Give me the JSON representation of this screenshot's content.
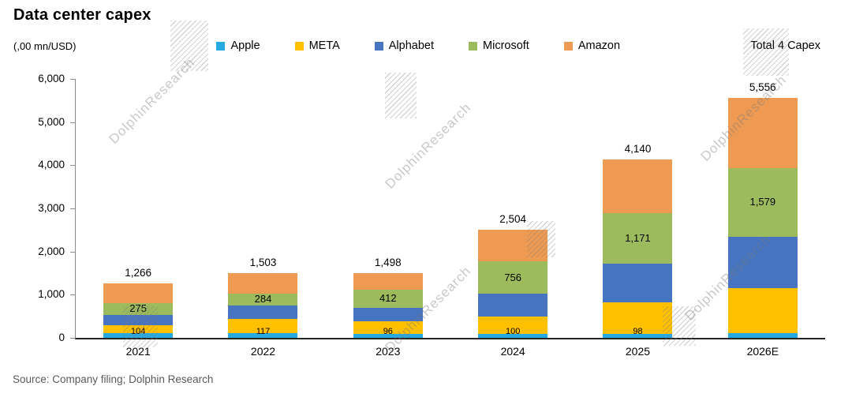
{
  "title": "Data center capex",
  "source": "Source: Company filing; Dolphin Research",
  "watermark": {
    "text": "DolphinResearch"
  },
  "chart_data": {
    "type": "bar",
    "stacked": true,
    "title": "Data center capex",
    "unit_label": "(,00 mn/USD)",
    "legend_extra": "Total 4 Capex",
    "legend_position": "top",
    "grid": false,
    "categories": [
      "2021",
      "2022",
      "2023",
      "2024",
      "2025",
      "2026E"
    ],
    "series": [
      {
        "name": "Apple",
        "color": "#27AAE1",
        "values": [
          104,
          117,
          96,
          100,
          98,
          110
        ]
      },
      {
        "name": "META",
        "color": "#FFC000",
        "values": [
          186,
          314,
          281,
          392,
          720,
          1050
        ]
      },
      {
        "name": "Alphabet",
        "color": "#4674C1",
        "values": [
          246,
          315,
          323,
          525,
          910,
          1190
        ]
      },
      {
        "name": "Microsoft",
        "color": "#9CBB5C",
        "values": [
          275,
          284,
          412,
          756,
          1171,
          1579
        ]
      },
      {
        "name": "Amazon",
        "color": "#EF9A52",
        "values": [
          455,
          473,
          386,
          731,
          1241,
          1627
        ]
      }
    ],
    "totals": [
      1266,
      1503,
      1498,
      2504,
      4140,
      5556
    ],
    "data_labels": {
      "apple": [
        "104",
        "117",
        "96",
        "100",
        "98",
        null
      ],
      "microsoft": [
        "275",
        "284",
        "412",
        "756",
        "1,171",
        "1,579"
      ],
      "totals": [
        "1,266",
        "1,503",
        "1,498",
        "2,504",
        "4,140",
        "5,556"
      ]
    },
    "ylim": [
      0,
      6000
    ],
    "yticks": [
      "6,000",
      "5,000",
      "4,000",
      "3,000",
      "2,000",
      "1,000",
      "0"
    ]
  }
}
